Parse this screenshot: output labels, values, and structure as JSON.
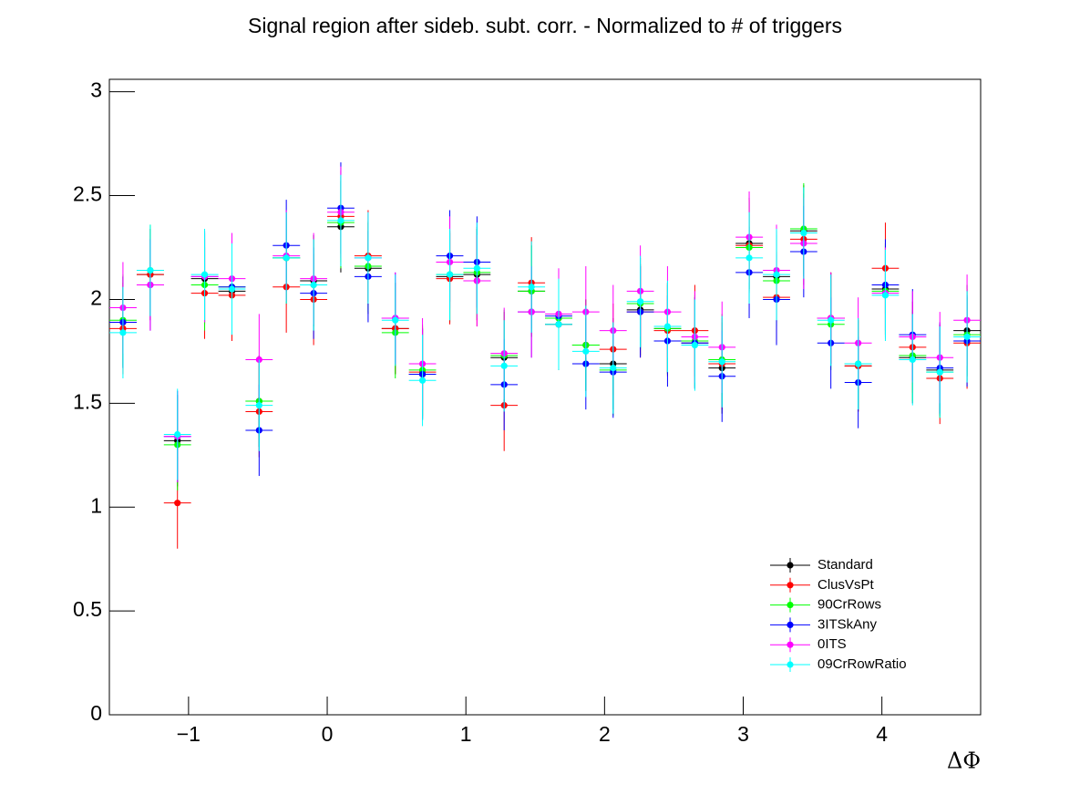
{
  "chart_data": {
    "type": "errorbar",
    "title": "Signal region after sideb. subt. corr. - Normalized to # of triggers",
    "x_label": "ΔΦ",
    "x": [
      -1.473,
      -1.276,
      -1.08,
      -0.884,
      -0.687,
      -0.491,
      -0.295,
      -0.098,
      0.098,
      0.295,
      0.491,
      0.687,
      0.884,
      1.08,
      1.276,
      1.473,
      1.669,
      1.865,
      2.062,
      2.258,
      2.454,
      2.651,
      2.847,
      3.043,
      3.24,
      3.436,
      3.632,
      3.829,
      4.025,
      4.221,
      4.418,
      4.614
    ],
    "bins": [
      -1.571,
      -1.374,
      -1.178,
      -0.982,
      -0.785,
      -0.589,
      -0.393,
      -0.196,
      0,
      0.196,
      0.393,
      0.589,
      0.785,
      0.982,
      1.178,
      1.374,
      1.571,
      1.767,
      1.963,
      2.16,
      2.356,
      2.553,
      2.749,
      2.945,
      3.142,
      3.338,
      3.534,
      3.731,
      3.927,
      4.123,
      4.32,
      4.516,
      4.712
    ],
    "xlim": [
      -1.571,
      4.712
    ],
    "xticks": [
      {
        "value": -1,
        "label": "−1"
      },
      0,
      1,
      2,
      3,
      4
    ],
    "ylim": [
      0,
      3.06
    ],
    "yticks": [
      0,
      0.5,
      1,
      1.5,
      2,
      2.5,
      3
    ],
    "legend": "lower right",
    "series": [
      {
        "name": "Standard",
        "color": "#000000",
        "values": [
          1.89,
          2.12,
          1.32,
          2.1,
          2.04,
          1.51,
          2.2,
          2.09,
          2.35,
          2.15,
          1.86,
          1.64,
          2.11,
          2.12,
          1.72,
          2.04,
          1.88,
          1.78,
          1.69,
          1.95,
          1.86,
          1.79,
          1.67,
          2.27,
          2.11,
          2.33,
          1.91,
          1.68,
          2.05,
          1.72,
          1.66,
          1.85
        ],
        "errors": [
          0.22,
          0.22,
          0.22,
          0.22,
          0.22,
          0.22,
          0.22,
          0.22,
          0.22,
          0.22,
          0.22,
          0.22,
          0.22,
          0.22,
          0.22,
          0.22,
          0.22,
          0.22,
          0.22,
          0.22,
          0.22,
          0.22,
          0.22,
          0.22,
          0.22,
          0.22,
          0.22,
          0.22,
          0.22,
          0.22,
          0.22,
          0.22
        ]
      },
      {
        "name": "ClusVsPt",
        "color": "#ff0000",
        "values": [
          1.86,
          2.12,
          1.02,
          2.03,
          2.02,
          1.46,
          2.06,
          2.0,
          2.4,
          2.21,
          1.86,
          1.65,
          2.1,
          2.09,
          1.49,
          2.08,
          1.91,
          1.78,
          1.76,
          1.94,
          1.85,
          1.85,
          1.69,
          2.26,
          2.01,
          2.29,
          1.91,
          1.68,
          2.15,
          1.77,
          1.62,
          1.79
        ],
        "errors": [
          0.22,
          0.22,
          0.22,
          0.22,
          0.22,
          0.22,
          0.22,
          0.22,
          0.22,
          0.22,
          0.22,
          0.22,
          0.22,
          0.22,
          0.22,
          0.22,
          0.22,
          0.22,
          0.22,
          0.22,
          0.22,
          0.22,
          0.22,
          0.22,
          0.22,
          0.22,
          0.22,
          0.22,
          0.22,
          0.22,
          0.22,
          0.22
        ]
      },
      {
        "name": "90CrRows",
        "color": "#00ff00",
        "values": [
          1.9,
          2.14,
          1.3,
          2.07,
          2.06,
          1.51,
          2.2,
          2.07,
          2.37,
          2.16,
          1.84,
          1.66,
          2.12,
          2.13,
          1.73,
          2.04,
          1.91,
          1.78,
          1.66,
          1.98,
          1.86,
          1.8,
          1.71,
          2.25,
          2.09,
          2.34,
          1.88,
          1.69,
          2.04,
          1.73,
          1.65,
          1.83
        ],
        "errors": [
          0.22,
          0.22,
          0.22,
          0.22,
          0.22,
          0.22,
          0.22,
          0.22,
          0.22,
          0.22,
          0.22,
          0.22,
          0.22,
          0.22,
          0.22,
          0.22,
          0.22,
          0.22,
          0.22,
          0.22,
          0.22,
          0.22,
          0.22,
          0.22,
          0.22,
          0.22,
          0.22,
          0.22,
          0.22,
          0.22,
          0.22,
          0.22
        ]
      },
      {
        "name": "3ITSkAny",
        "color": "#0000ff",
        "values": [
          1.89,
          2.07,
          1.34,
          2.11,
          2.06,
          1.37,
          2.26,
          2.03,
          2.44,
          2.11,
          1.91,
          1.64,
          2.21,
          2.18,
          1.59,
          1.94,
          1.92,
          1.69,
          1.65,
          1.94,
          1.8,
          1.79,
          1.63,
          2.13,
          2.0,
          2.23,
          1.79,
          1.6,
          2.07,
          1.83,
          1.67,
          1.8
        ],
        "errors": [
          0.22,
          0.22,
          0.22,
          0.22,
          0.22,
          0.22,
          0.22,
          0.22,
          0.22,
          0.22,
          0.22,
          0.22,
          0.22,
          0.22,
          0.22,
          0.22,
          0.22,
          0.22,
          0.22,
          0.22,
          0.22,
          0.22,
          0.22,
          0.22,
          0.22,
          0.22,
          0.22,
          0.22,
          0.22,
          0.22,
          0.22,
          0.22
        ]
      },
      {
        "name": "0ITS",
        "color": "#ff00ff",
        "values": [
          1.96,
          2.07,
          1.34,
          2.11,
          2.1,
          1.71,
          2.21,
          2.1,
          2.42,
          2.2,
          1.91,
          1.69,
          2.18,
          2.09,
          1.74,
          1.94,
          1.93,
          1.94,
          1.85,
          2.04,
          1.94,
          1.82,
          1.77,
          2.3,
          2.14,
          2.27,
          1.91,
          1.79,
          2.03,
          1.82,
          1.72,
          1.9
        ],
        "errors": [
          0.22,
          0.22,
          0.22,
          0.22,
          0.22,
          0.22,
          0.22,
          0.22,
          0.22,
          0.22,
          0.22,
          0.22,
          0.22,
          0.22,
          0.22,
          0.22,
          0.22,
          0.22,
          0.22,
          0.22,
          0.22,
          0.22,
          0.22,
          0.22,
          0.22,
          0.22,
          0.22,
          0.22,
          0.22,
          0.22,
          0.22,
          0.22
        ]
      },
      {
        "name": "09CrRowRatio",
        "color": "#00ffff",
        "values": [
          1.84,
          2.14,
          1.35,
          2.12,
          2.05,
          1.49,
          2.2,
          2.07,
          2.38,
          2.2,
          1.9,
          1.61,
          2.12,
          2.15,
          1.68,
          2.06,
          1.88,
          1.75,
          1.67,
          1.99,
          1.87,
          1.78,
          1.7,
          2.2,
          2.12,
          2.32,
          1.9,
          1.69,
          2.02,
          1.71,
          1.65,
          1.82
        ],
        "errors": [
          0.22,
          0.22,
          0.22,
          0.22,
          0.22,
          0.22,
          0.22,
          0.22,
          0.22,
          0.22,
          0.22,
          0.22,
          0.22,
          0.22,
          0.22,
          0.22,
          0.22,
          0.22,
          0.22,
          0.22,
          0.22,
          0.22,
          0.22,
          0.22,
          0.22,
          0.22,
          0.22,
          0.22,
          0.22,
          0.22,
          0.22,
          0.22
        ]
      }
    ]
  }
}
